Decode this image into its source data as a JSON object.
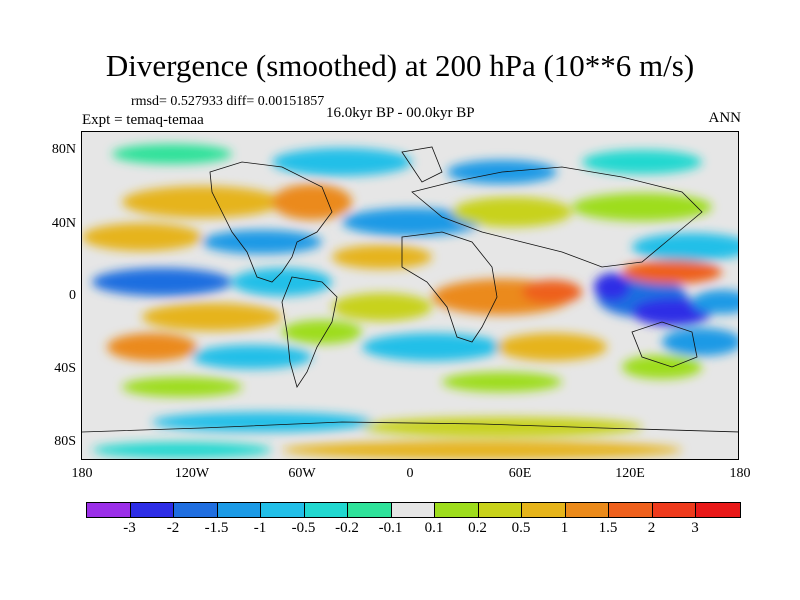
{
  "title": "Divergence (smoothed) at 200 hPa (10**6 m/s)",
  "stats": "rmsd= 0.527933 diff= 0.00151857",
  "experiment": "Expt = temaq-temaa",
  "period": "16.0kyr BP - 00.0kyr BP",
  "season": "ANN",
  "y_axis_labels": [
    "80N",
    "40N",
    "0",
    "40S",
    "80S"
  ],
  "x_axis_labels": [
    "180",
    "120W",
    "60W",
    "0",
    "60E",
    "120E",
    "180"
  ],
  "colorbar": {
    "labels": [
      "-3",
      "-2",
      "-1.5",
      "-1",
      "-0.5",
      "-0.2",
      "-0.1",
      "0.1",
      "0.2",
      "0.5",
      "1",
      "1.5",
      "2",
      "3"
    ],
    "colors": [
      "#9b2fe8",
      "#2d2de6",
      "#1f6ee0",
      "#1b9ae6",
      "#22bfe8",
      "#21d8d0",
      "#2ee29a",
      "#e6e6e6",
      "#9edd1c",
      "#c8d21a",
      "#e6b41a",
      "#eb8a1a",
      "#ee601c",
      "#ee3a1c",
      "#e81818"
    ]
  },
  "chart_data": {
    "type": "heatmap",
    "title": "Divergence (smoothed) at 200 hPa (10**6 m/s)",
    "x_range_deg": [
      -180,
      180
    ],
    "y_range_deg": [
      -90,
      90
    ],
    "levels": [
      -3,
      -2,
      -1.5,
      -1,
      -0.5,
      -0.2,
      -0.1,
      0.1,
      0.2,
      0.5,
      1,
      1.5,
      2,
      3
    ],
    "features": [
      {
        "lon": -150,
        "lat": 5,
        "value": -1.2
      },
      {
        "lon": -130,
        "lat": -5,
        "value": 0.8
      },
      {
        "lon": -100,
        "lat": 20,
        "value": -0.8
      },
      {
        "lon": -60,
        "lat": 0,
        "value": -0.6
      },
      {
        "lon": -30,
        "lat": 10,
        "value": 0.6
      },
      {
        "lon": 20,
        "lat": 0,
        "value": 1.0
      },
      {
        "lon": 50,
        "lat": 0,
        "value": 1.2
      },
      {
        "lon": 100,
        "lat": 0,
        "value": -2.2
      },
      {
        "lon": 120,
        "lat": -10,
        "value": -2.0
      },
      {
        "lon": 140,
        "lat": 15,
        "value": 1.5
      },
      {
        "lon": 160,
        "lat": -20,
        "value": -0.8
      },
      {
        "lon": 0,
        "lat": 60,
        "value": -0.6
      },
      {
        "lon": 60,
        "lat": -30,
        "value": 0.6
      },
      {
        "lon": -170,
        "lat": -30,
        "value": 1.0
      }
    ]
  }
}
